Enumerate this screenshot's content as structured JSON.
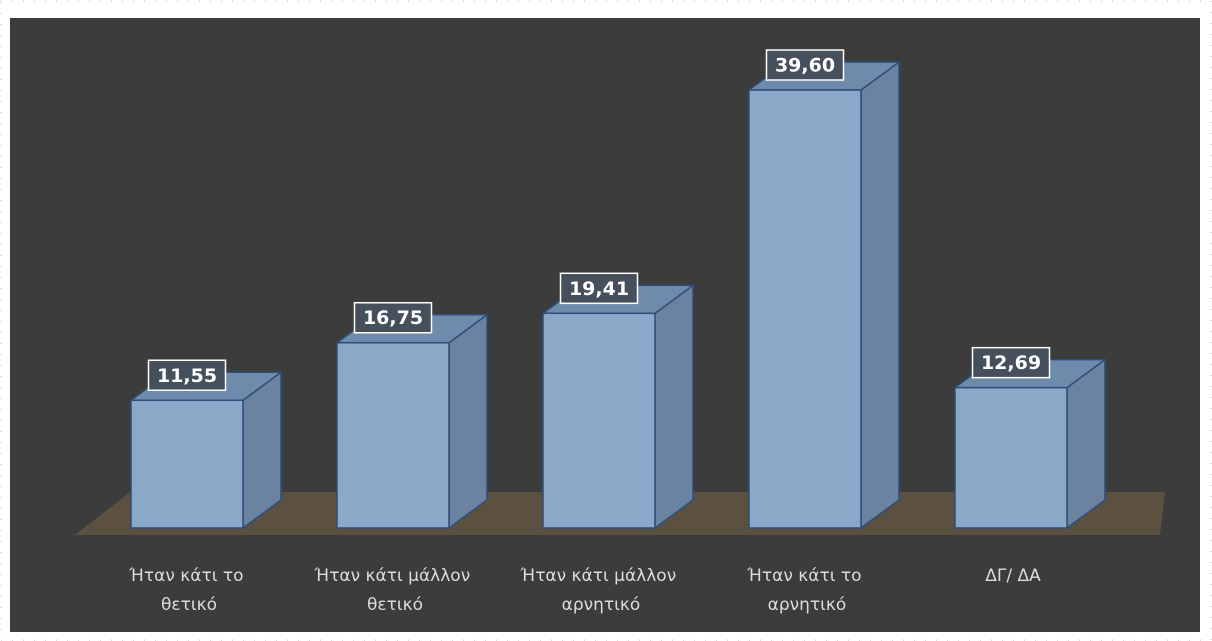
{
  "chart_data": {
    "type": "bar3d",
    "categories": [
      "Ήταν κάτι το θετικό",
      "Ήταν κάτι μάλλον θετικό",
      "Ήταν κάτι μάλλον αρνητικό",
      "Ήταν κάτι το αρνητικό",
      "ΔΓ/ ΔΑ"
    ],
    "values": [
      11.55,
      16.75,
      19.41,
      39.6,
      12.69
    ],
    "value_labels": [
      "11,55",
      "16,75",
      "19,41",
      "39,60",
      "12,69"
    ],
    "color": "#8aa8c8"
  }
}
